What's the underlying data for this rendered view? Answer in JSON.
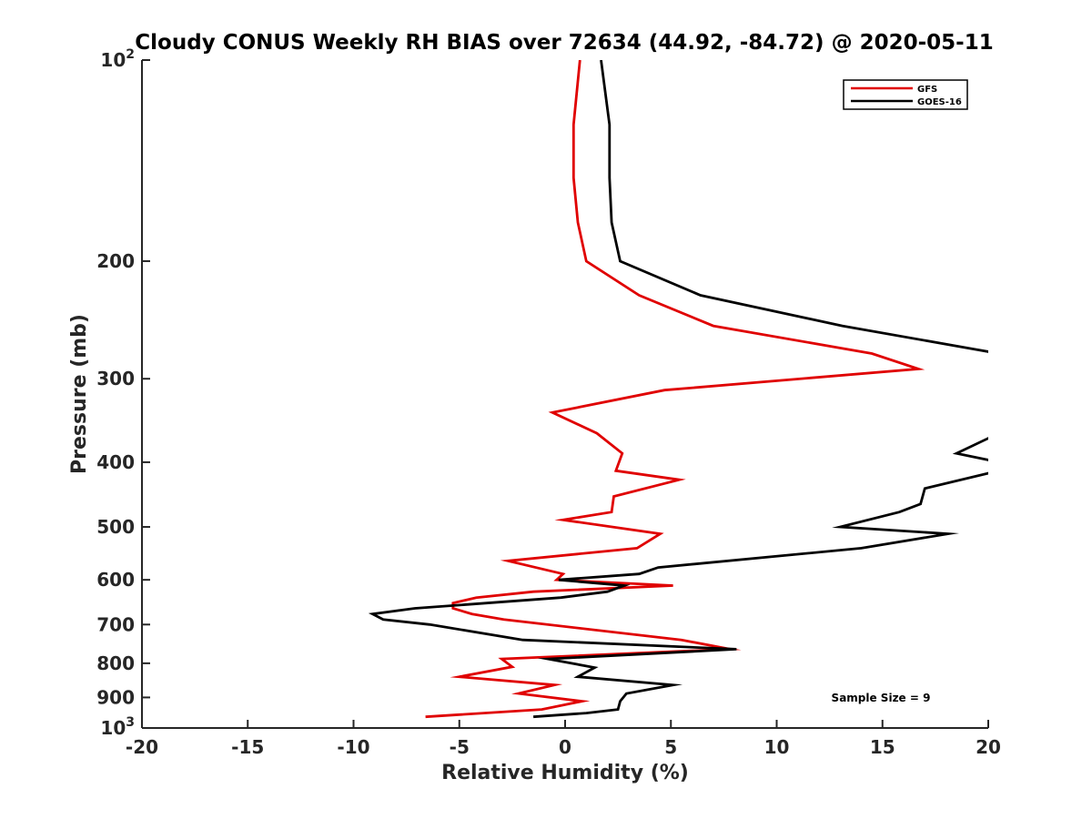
{
  "chart_data": {
    "type": "line",
    "title": "Cloudy CONUS Weekly RH BIAS over 72634 (44.92, -84.72) @ 2020-05-11",
    "xlabel": "Relative Humidity (%)",
    "ylabel": "Pressure (mb)",
    "xlim": [
      -20,
      20
    ],
    "ylim": [
      100,
      1000
    ],
    "yscale": "log",
    "y_reversed": true,
    "grid": false,
    "legend_placement": "top-right",
    "annotation": "Sample Size = 9",
    "x_ticks": [
      -20,
      -15,
      -10,
      -5,
      0,
      5,
      10,
      15,
      20
    ],
    "x_tick_labels": [
      "-20",
      "-15",
      "-10",
      "-5",
      "0",
      "5",
      "10",
      "15",
      "20"
    ],
    "y_ticks": [
      100,
      200,
      300,
      400,
      500,
      600,
      700,
      800,
      900,
      1000
    ],
    "y_tick_labels": [
      {
        "base": "10",
        "exp": "2"
      },
      {
        "base": "200",
        "exp": ""
      },
      {
        "base": "300",
        "exp": ""
      },
      {
        "base": "400",
        "exp": ""
      },
      {
        "base": "500",
        "exp": ""
      },
      {
        "base": "600",
        "exp": ""
      },
      {
        "base": "700",
        "exp": ""
      },
      {
        "base": "800",
        "exp": ""
      },
      {
        "base": "900",
        "exp": ""
      },
      {
        "base": "10",
        "exp": "3"
      }
    ],
    "series": [
      {
        "name": "GFS",
        "color": "#e00000",
        "points": [
          [
            0.7,
            100
          ],
          [
            0.4,
            125
          ],
          [
            0.4,
            150
          ],
          [
            0.6,
            175
          ],
          [
            1.0,
            200
          ],
          [
            3.5,
            225
          ],
          [
            7.0,
            250
          ],
          [
            14.5,
            275
          ],
          [
            16.7,
            290
          ],
          [
            4.7,
            312
          ],
          [
            -0.6,
            337
          ],
          [
            1.5,
            362
          ],
          [
            2.7,
            388
          ],
          [
            2.4,
            412
          ],
          [
            5.4,
            425
          ],
          [
            2.3,
            450
          ],
          [
            2.2,
            475
          ],
          [
            -0.1,
            488
          ],
          [
            4.5,
            512
          ],
          [
            3.4,
            538
          ],
          [
            -2.7,
            562
          ],
          [
            -0.1,
            588
          ],
          [
            -0.4,
            600
          ],
          [
            5.1,
            612
          ],
          [
            -1.5,
            625
          ],
          [
            -4.2,
            638
          ],
          [
            -5.3,
            650
          ],
          [
            -5.3,
            662
          ],
          [
            -4.4,
            675
          ],
          [
            -2.9,
            688
          ],
          [
            5.5,
            738
          ],
          [
            7.8,
            762
          ],
          [
            -3.0,
            788
          ],
          [
            -2.5,
            810
          ],
          [
            -5.0,
            838
          ],
          [
            -0.5,
            862
          ],
          [
            -2.2,
            888
          ],
          [
            0.8,
            912
          ],
          [
            -1.1,
            938
          ],
          [
            -6.6,
            962
          ]
        ]
      },
      {
        "name": "GOES-16",
        "color": "#000000",
        "points": [
          [
            1.7,
            100
          ],
          [
            2.1,
            125
          ],
          [
            2.1,
            150
          ],
          [
            2.2,
            175
          ],
          [
            2.6,
            200
          ],
          [
            6.4,
            225
          ],
          [
            13.1,
            250
          ],
          [
            20.5,
            275
          ],
          [
            null,
            null
          ],
          [
            20.5,
            362
          ],
          [
            18.5,
            388
          ],
          [
            20.5,
            400
          ],
          [
            null,
            null
          ],
          [
            20.5,
            412
          ],
          [
            17.0,
            438
          ],
          [
            16.8,
            462
          ],
          [
            15.8,
            475
          ],
          [
            13.0,
            500
          ],
          [
            18.1,
            512
          ],
          [
            14.0,
            538
          ],
          [
            4.4,
            575
          ],
          [
            3.5,
            588
          ],
          [
            -0.3,
            600
          ],
          [
            2.8,
            612
          ],
          [
            2.0,
            625
          ],
          [
            -0.2,
            638
          ],
          [
            -3.7,
            650
          ],
          [
            -7.1,
            662
          ],
          [
            -9.1,
            675
          ],
          [
            -8.6,
            688
          ],
          [
            -6.4,
            700
          ],
          [
            -2.0,
            738
          ],
          [
            8.1,
            762
          ],
          [
            -0.8,
            788
          ],
          [
            1.4,
            812
          ],
          [
            0.6,
            838
          ],
          [
            5.1,
            862
          ],
          [
            2.9,
            888
          ],
          [
            2.6,
            912
          ],
          [
            2.5,
            938
          ],
          [
            1.0,
            950
          ],
          [
            -1.5,
            962
          ]
        ]
      }
    ]
  }
}
